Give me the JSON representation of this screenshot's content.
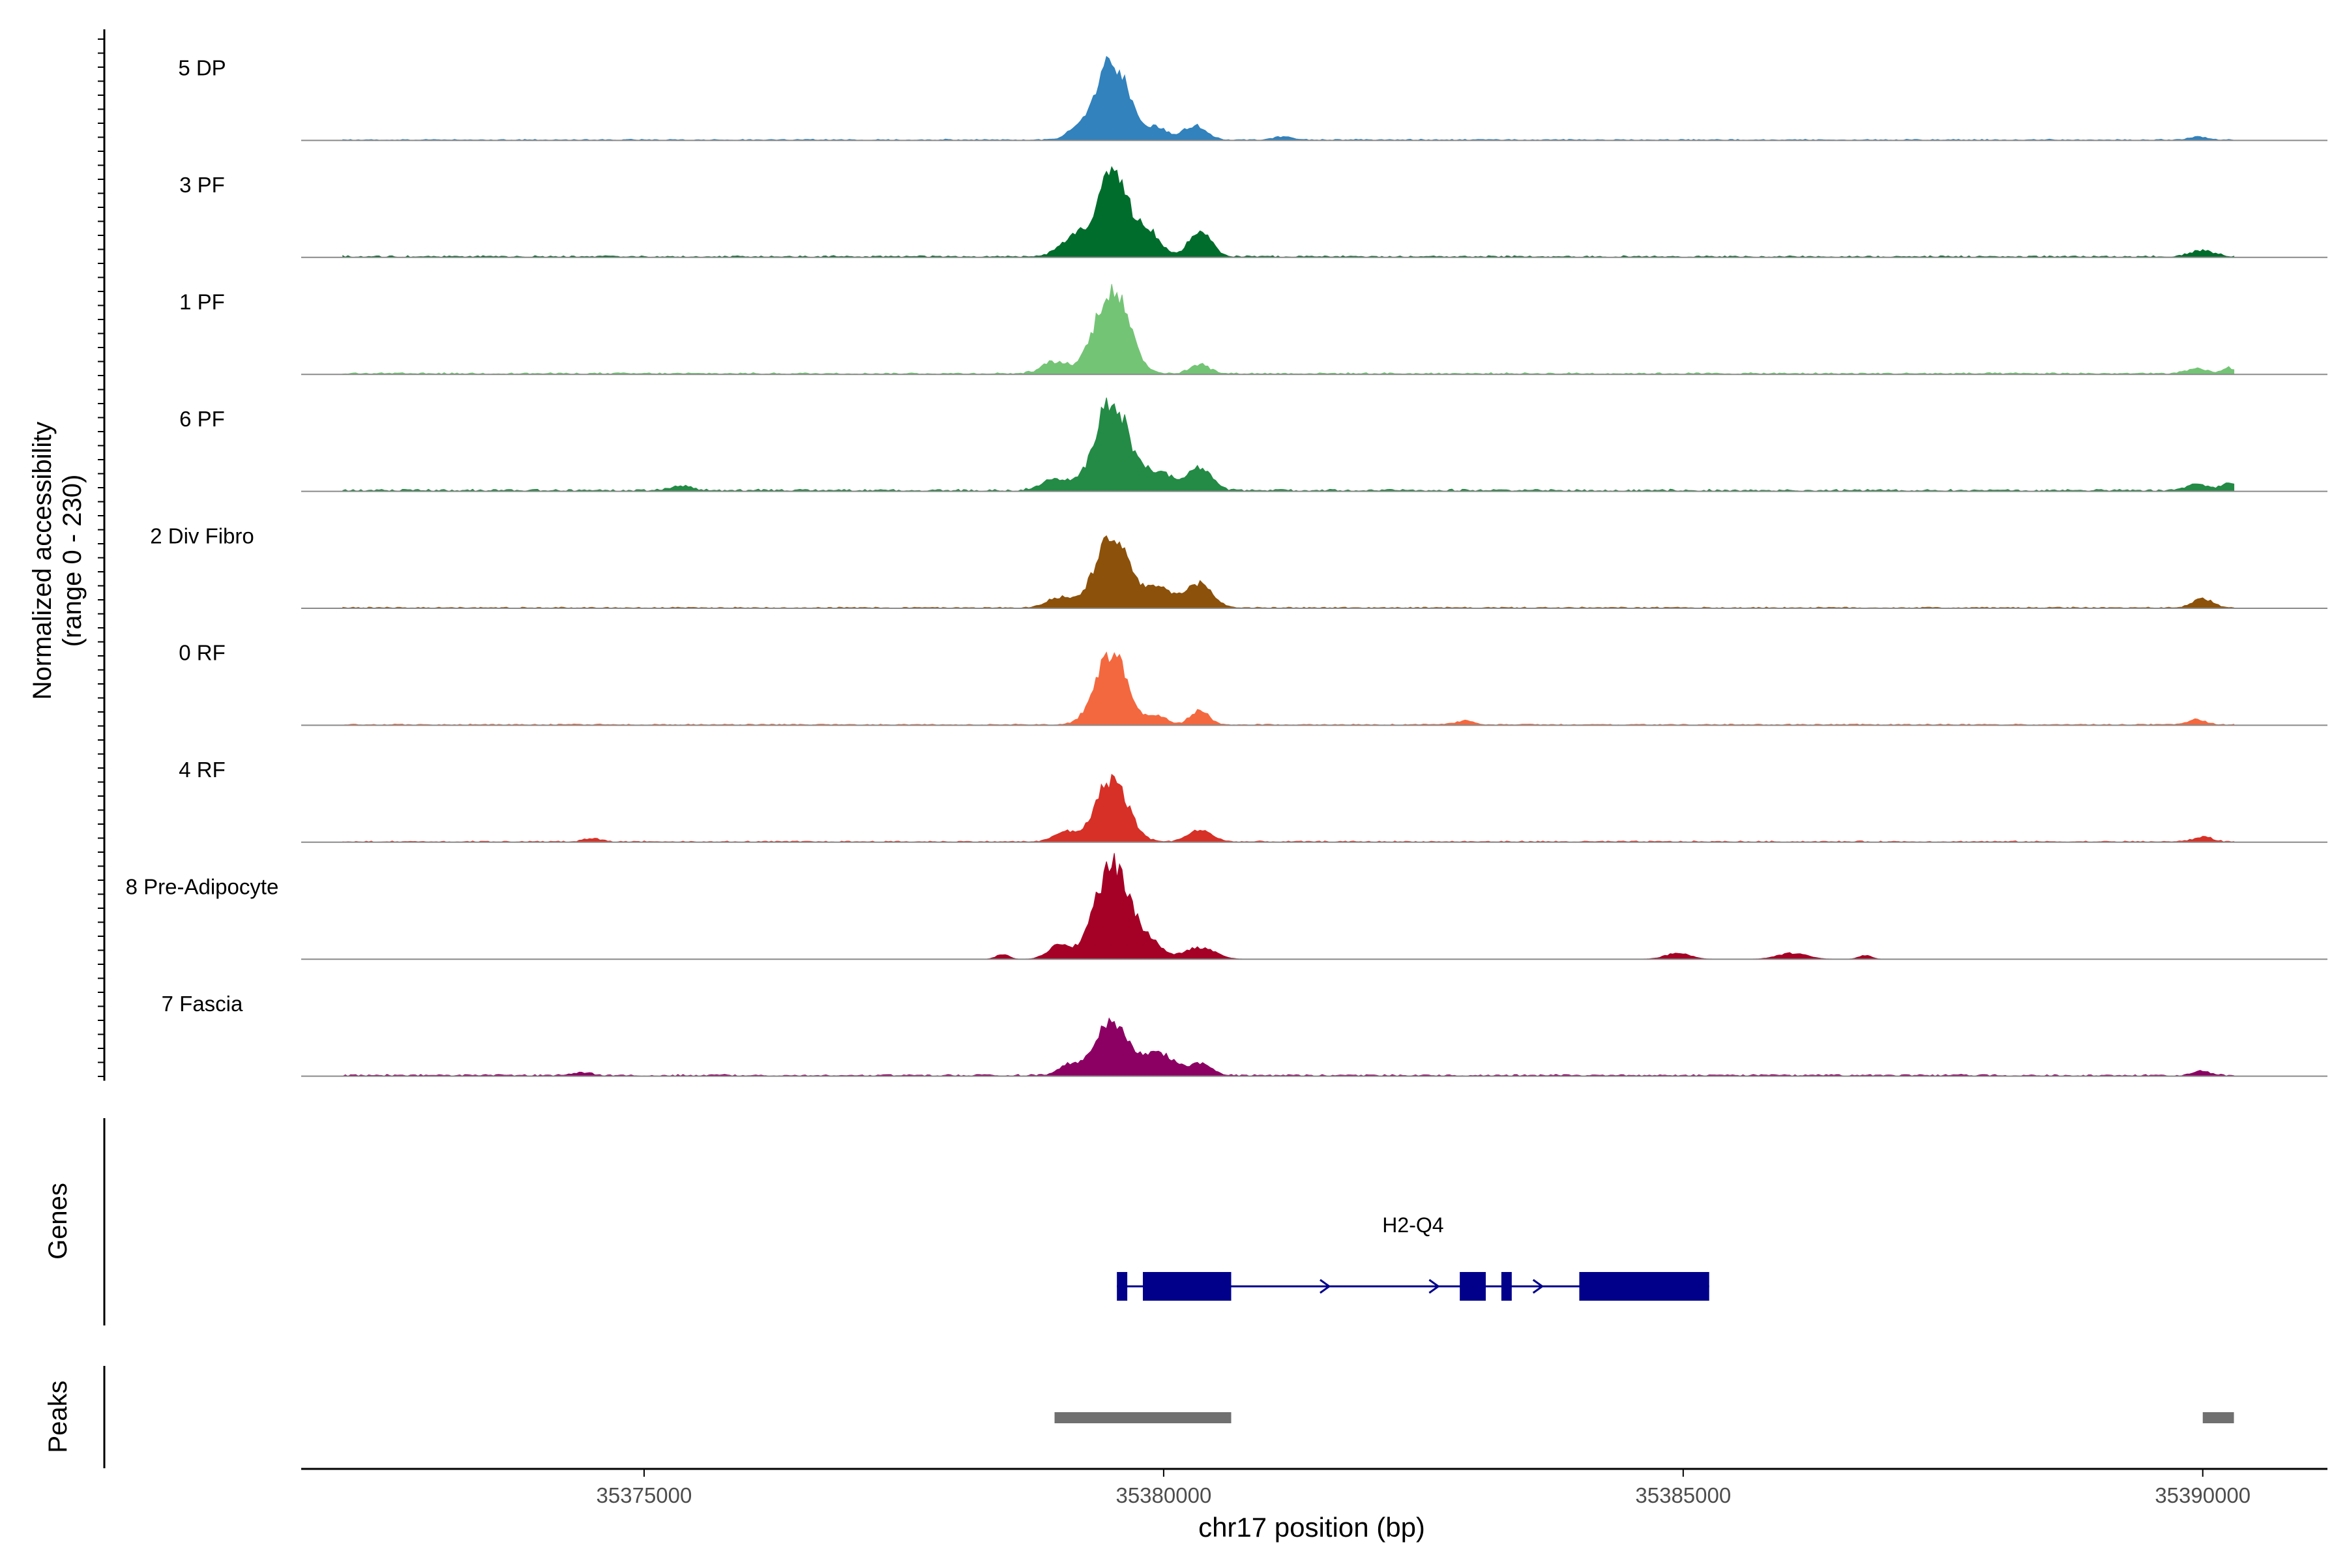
{
  "chart_data": {
    "type": "area",
    "title": "",
    "xlabel": "chr17 position (bp)",
    "ylabel_line1": "Normalized accessibility",
    "ylabel_line2": "(range 0 - 230)",
    "xlim": [
      35371700,
      35391200
    ],
    "ylim": [
      0,
      230
    ],
    "x_ticks": [
      35375000,
      35380000,
      35385000,
      35390000
    ],
    "x_tick_labels": [
      "35375000",
      "35380000",
      "35385000",
      "35390000"
    ],
    "grid": false,
    "legend": "none",
    "tracks": [
      {
        "name": "5 DP",
        "color": "#3182bd",
        "peaks": [
          [
            35379500,
            200,
            160
          ],
          [
            35379150,
            22,
            80
          ],
          [
            35379950,
            30,
            90
          ],
          [
            35380300,
            35,
            110
          ],
          [
            35381150,
            8,
            90
          ],
          [
            35389950,
            8,
            90
          ]
        ],
        "noise": 3
      },
      {
        "name": "3 PF",
        "color": "#006d2c",
        "peaks": [
          [
            35379500,
            200,
            160
          ],
          [
            35379100,
            40,
            120
          ],
          [
            35379850,
            55,
            120
          ],
          [
            35380350,
            60,
            110
          ],
          [
            35390000,
            15,
            120
          ]
        ],
        "noise": 4
      },
      {
        "name": "1 PF",
        "color": "#74c476",
        "peaks": [
          [
            35379500,
            215,
            160
          ],
          [
            35378950,
            30,
            120
          ],
          [
            35380350,
            25,
            90
          ],
          [
            35389950,
            12,
            100
          ],
          [
            35390250,
            14,
            60
          ]
        ],
        "noise": 4
      },
      {
        "name": "6 PF",
        "color": "#238b45",
        "peaks": [
          [
            35379500,
            225,
            160
          ],
          [
            35378950,
            30,
            120
          ],
          [
            35379950,
            45,
            140
          ],
          [
            35380350,
            60,
            110
          ],
          [
            35375350,
            10,
            110
          ],
          [
            35389950,
            18,
            100
          ],
          [
            35390250,
            22,
            60
          ]
        ],
        "noise": 5
      },
      {
        "name": "2 Div Fibro",
        "color": "#8c510a",
        "peaks": [
          [
            35379500,
            175,
            160
          ],
          [
            35379000,
            25,
            120
          ],
          [
            35379950,
            50,
            140
          ],
          [
            35380350,
            60,
            120
          ],
          [
            35390000,
            22,
            100
          ]
        ],
        "noise": 3
      },
      {
        "name": "0 RF",
        "color": "#f4683f",
        "peaks": [
          [
            35379500,
            185,
            150
          ],
          [
            35380350,
            35,
            90
          ],
          [
            35379950,
            20,
            90
          ],
          [
            35382900,
            10,
            90
          ],
          [
            35389950,
            12,
            90
          ]
        ],
        "noise": 3
      },
      {
        "name": "4 RF",
        "color": "#d73027",
        "peaks": [
          [
            35379500,
            160,
            150
          ],
          [
            35379050,
            25,
            100
          ],
          [
            35380350,
            30,
            110
          ],
          [
            35374500,
            8,
            80
          ],
          [
            35390000,
            12,
            90
          ]
        ],
        "noise": 3
      },
      {
        "name": "8 Pre-Adipocyte",
        "color": "#a50026",
        "peaks": [
          [
            35379500,
            235,
            160
          ],
          [
            35379000,
            35,
            110
          ],
          [
            35379850,
            45,
            130
          ],
          [
            35380350,
            30,
            140
          ],
          [
            35378450,
            12,
            60
          ],
          [
            35384950,
            15,
            120
          ],
          [
            35386050,
            15,
            140
          ],
          [
            35386750,
            10,
            60
          ]
        ],
        "noise": 0
      },
      {
        "name": "7 Fascia",
        "color": "#8c0063",
        "peaks": [
          [
            35379500,
            140,
            150
          ],
          [
            35379100,
            25,
            110
          ],
          [
            35379950,
            55,
            150
          ],
          [
            35380350,
            30,
            110
          ],
          [
            35374400,
            8,
            80
          ],
          [
            35390000,
            10,
            90
          ]
        ],
        "noise": 4
      }
    ],
    "genes": [
      {
        "name": "H2-Q4",
        "start": 35379550,
        "end": 35385250,
        "strand": "+",
        "exons": [
          [
            35379550,
            35379650
          ],
          [
            35379800,
            35380650
          ],
          [
            35382850,
            35383100
          ],
          [
            35383250,
            35383350
          ],
          [
            35384000,
            35385250
          ]
        ]
      }
    ],
    "peaks": [
      [
        35378950,
        35380650
      ],
      [
        35390000,
        35390300
      ]
    ]
  },
  "panels": {
    "genes_label": "Genes",
    "peaks_label": "Peaks"
  },
  "colors": {
    "gene": "#00008b",
    "peak": "#707070",
    "axis": "#000000",
    "baseline": "#8a8a8a"
  }
}
